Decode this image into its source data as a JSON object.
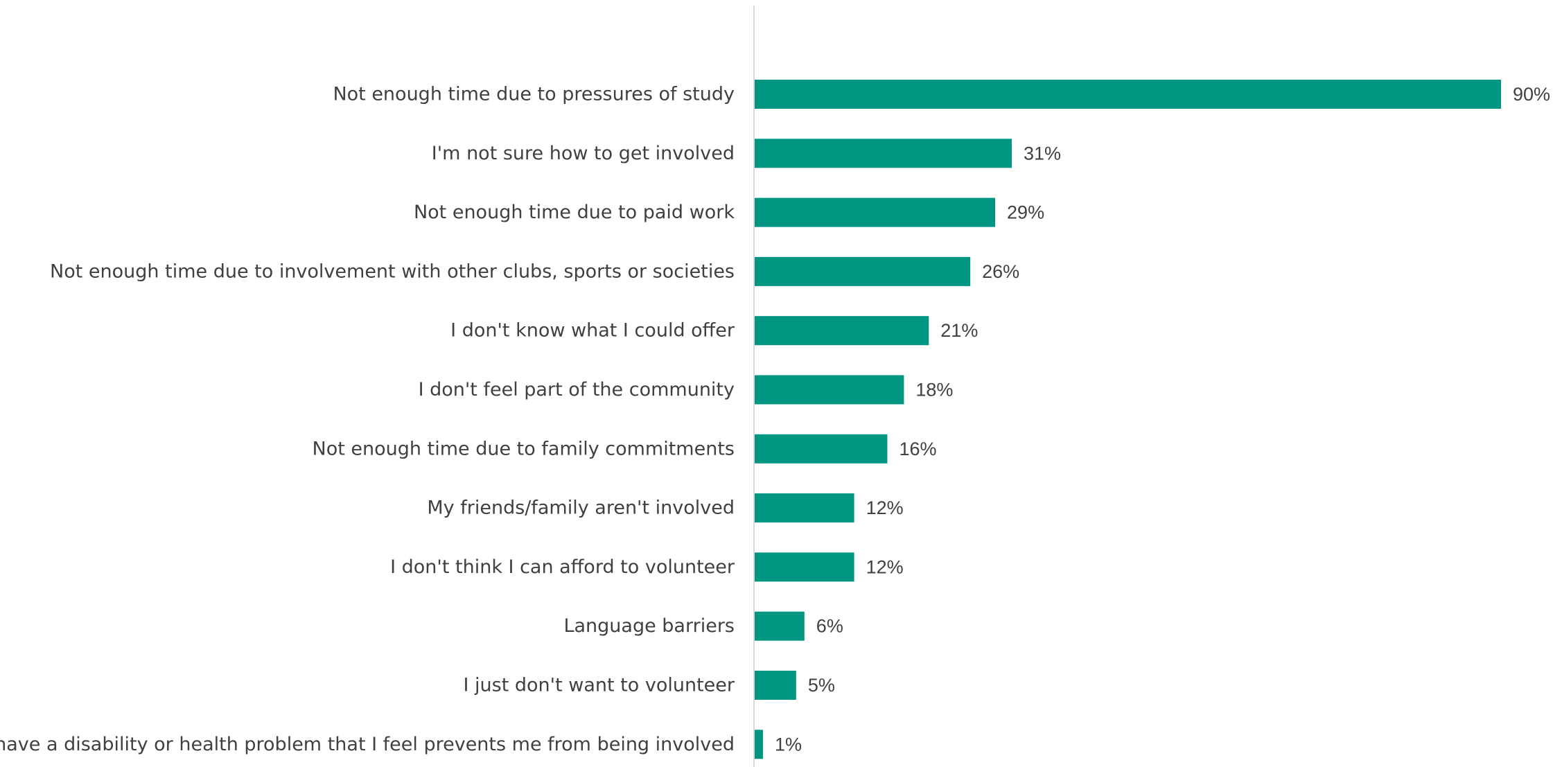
{
  "chart_data": {
    "type": "bar",
    "orientation": "horizontal",
    "categories": [
      "Not enough time due to pressures of study",
      "I'm not sure how to get involved",
      "Not enough time due to paid work",
      "Not enough time due to involvement with other clubs, sports or societies",
      "I don't know what I could offer",
      "I don't feel part of the community",
      "Not enough time due to family commitments",
      "My friends/family aren't involved",
      "I don't think I can afford to volunteer",
      "Language barriers",
      "I just don't want to volunteer",
      "I have a disability or health problem that I feel prevents me from being involved"
    ],
    "values": [
      90,
      31,
      29,
      26,
      21,
      18,
      16,
      12,
      12,
      6,
      5,
      1
    ],
    "value_labels": [
      "90%",
      "31%",
      "29%",
      "26%",
      "21%",
      "18%",
      "16%",
      "12%",
      "12%",
      "6%",
      "5%",
      "1%"
    ],
    "xlim": [
      0,
      90
    ],
    "grid": false,
    "bar_color": "#009681",
    "axis_color": "#d9d9d9"
  }
}
